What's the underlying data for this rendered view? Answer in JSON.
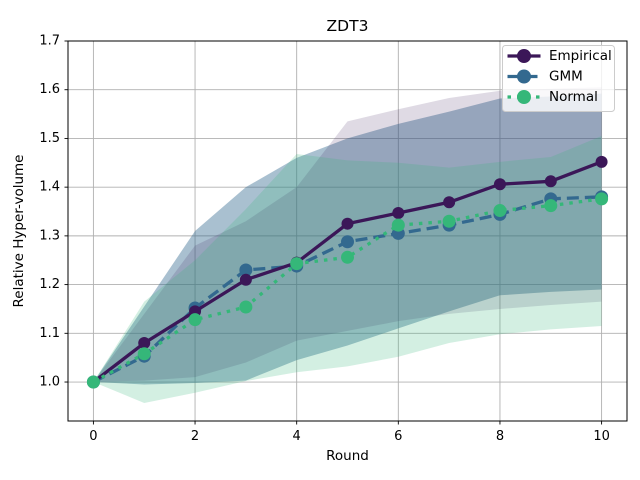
{
  "chart_data": {
    "type": "line",
    "title": "ZDT3",
    "xlabel": "Round",
    "ylabel": "Relative Hyper-volume",
    "x": [
      0,
      1,
      2,
      3,
      4,
      5,
      6,
      7,
      8,
      9,
      10
    ],
    "xlim": [
      -0.5,
      10.5
    ],
    "ylim": [
      0.92,
      1.7
    ],
    "xticks": [
      0,
      2,
      4,
      6,
      8,
      10
    ],
    "yticks": [
      1.0,
      1.1,
      1.2,
      1.3,
      1.4,
      1.5,
      1.6,
      1.7
    ],
    "grid": true,
    "grid_color": "#b0b0b0",
    "legend_position": "upper right",
    "series": [
      {
        "name": "Empirical",
        "color": "#3b1758",
        "linestyle": "solid",
        "marker": "circle",
        "marker_radius": 6,
        "band_alpha": 0.16,
        "values": [
          1.0,
          1.08,
          1.145,
          1.21,
          1.245,
          1.325,
          1.347,
          1.369,
          1.406,
          1.412,
          1.452
        ],
        "band_lower": [
          1.0,
          1.003,
          1.01,
          1.04,
          1.085,
          1.105,
          1.125,
          1.14,
          1.15,
          1.158,
          1.165
        ],
        "band_upper": [
          1.0,
          1.14,
          1.28,
          1.33,
          1.4,
          1.535,
          1.56,
          1.583,
          1.598,
          1.602,
          1.605
        ]
      },
      {
        "name": "GMM",
        "color": "#33698f",
        "linestyle": "dashed",
        "marker": "circle",
        "marker_radius": 6.5,
        "band_alpha": 0.42,
        "values": [
          1.0,
          1.053,
          1.152,
          1.23,
          1.238,
          1.288,
          1.305,
          1.322,
          1.344,
          1.376,
          1.38
        ],
        "band_lower": [
          1.0,
          0.995,
          0.998,
          1.003,
          1.045,
          1.075,
          1.11,
          1.145,
          1.178,
          1.185,
          1.19
        ],
        "band_upper": [
          1.0,
          1.155,
          1.31,
          1.4,
          1.46,
          1.5,
          1.53,
          1.555,
          1.582,
          1.586,
          1.592
        ]
      },
      {
        "name": "Normal",
        "color": "#35b779",
        "linestyle": "dotted",
        "marker": "circle",
        "marker_radius": 6.5,
        "band_alpha": 0.22,
        "values": [
          1.0,
          1.058,
          1.128,
          1.154,
          1.243,
          1.256,
          1.322,
          1.33,
          1.352,
          1.362,
          1.376
        ],
        "band_lower": [
          1.0,
          0.957,
          0.978,
          1.002,
          1.02,
          1.032,
          1.052,
          1.08,
          1.098,
          1.108,
          1.115
        ],
        "band_upper": [
          1.0,
          1.165,
          1.25,
          1.355,
          1.468,
          1.455,
          1.45,
          1.44,
          1.452,
          1.462,
          1.505
        ]
      }
    ]
  }
}
